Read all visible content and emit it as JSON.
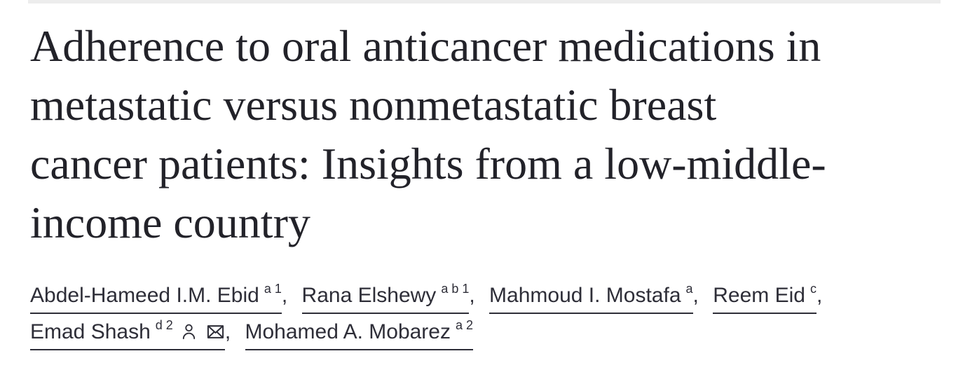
{
  "page": {
    "background": "#ffffff",
    "top_divider_color": "#ededed",
    "title_color": "#222229",
    "text_color": "#2e2e38"
  },
  "article": {
    "title": "Adherence to oral anticancer medications in metastatic versus nonmetastatic breast cancer patients: Insights from a low-middle-income country",
    "title_lines": [
      "Adherence to oral anticancer medications in",
      "metastatic versus nonmetastatic breast",
      "cancer patients: Insights from a low-middle-",
      "income country"
    ],
    "authors": [
      {
        "name": "Abdel-Hameed I.M. Ebid",
        "sup": "a 1",
        "icons": [],
        "separator": ","
      },
      {
        "name": "Rana Elshewy",
        "sup": "a b 1",
        "icons": [],
        "separator": ","
      },
      {
        "name": "Mahmoud I. Mostafa",
        "sup": "a",
        "icons": [],
        "separator": ","
      },
      {
        "name": "Reem Eid",
        "sup": "c",
        "icons": [],
        "separator": ","
      },
      {
        "name": "Emad Shash",
        "sup": "d 2",
        "icons": [
          "person-icon",
          "envelope-icon"
        ],
        "separator": ","
      },
      {
        "name": "Mohamed A. Mobarez",
        "sup": "a 2",
        "icons": [],
        "separator": ""
      }
    ]
  }
}
